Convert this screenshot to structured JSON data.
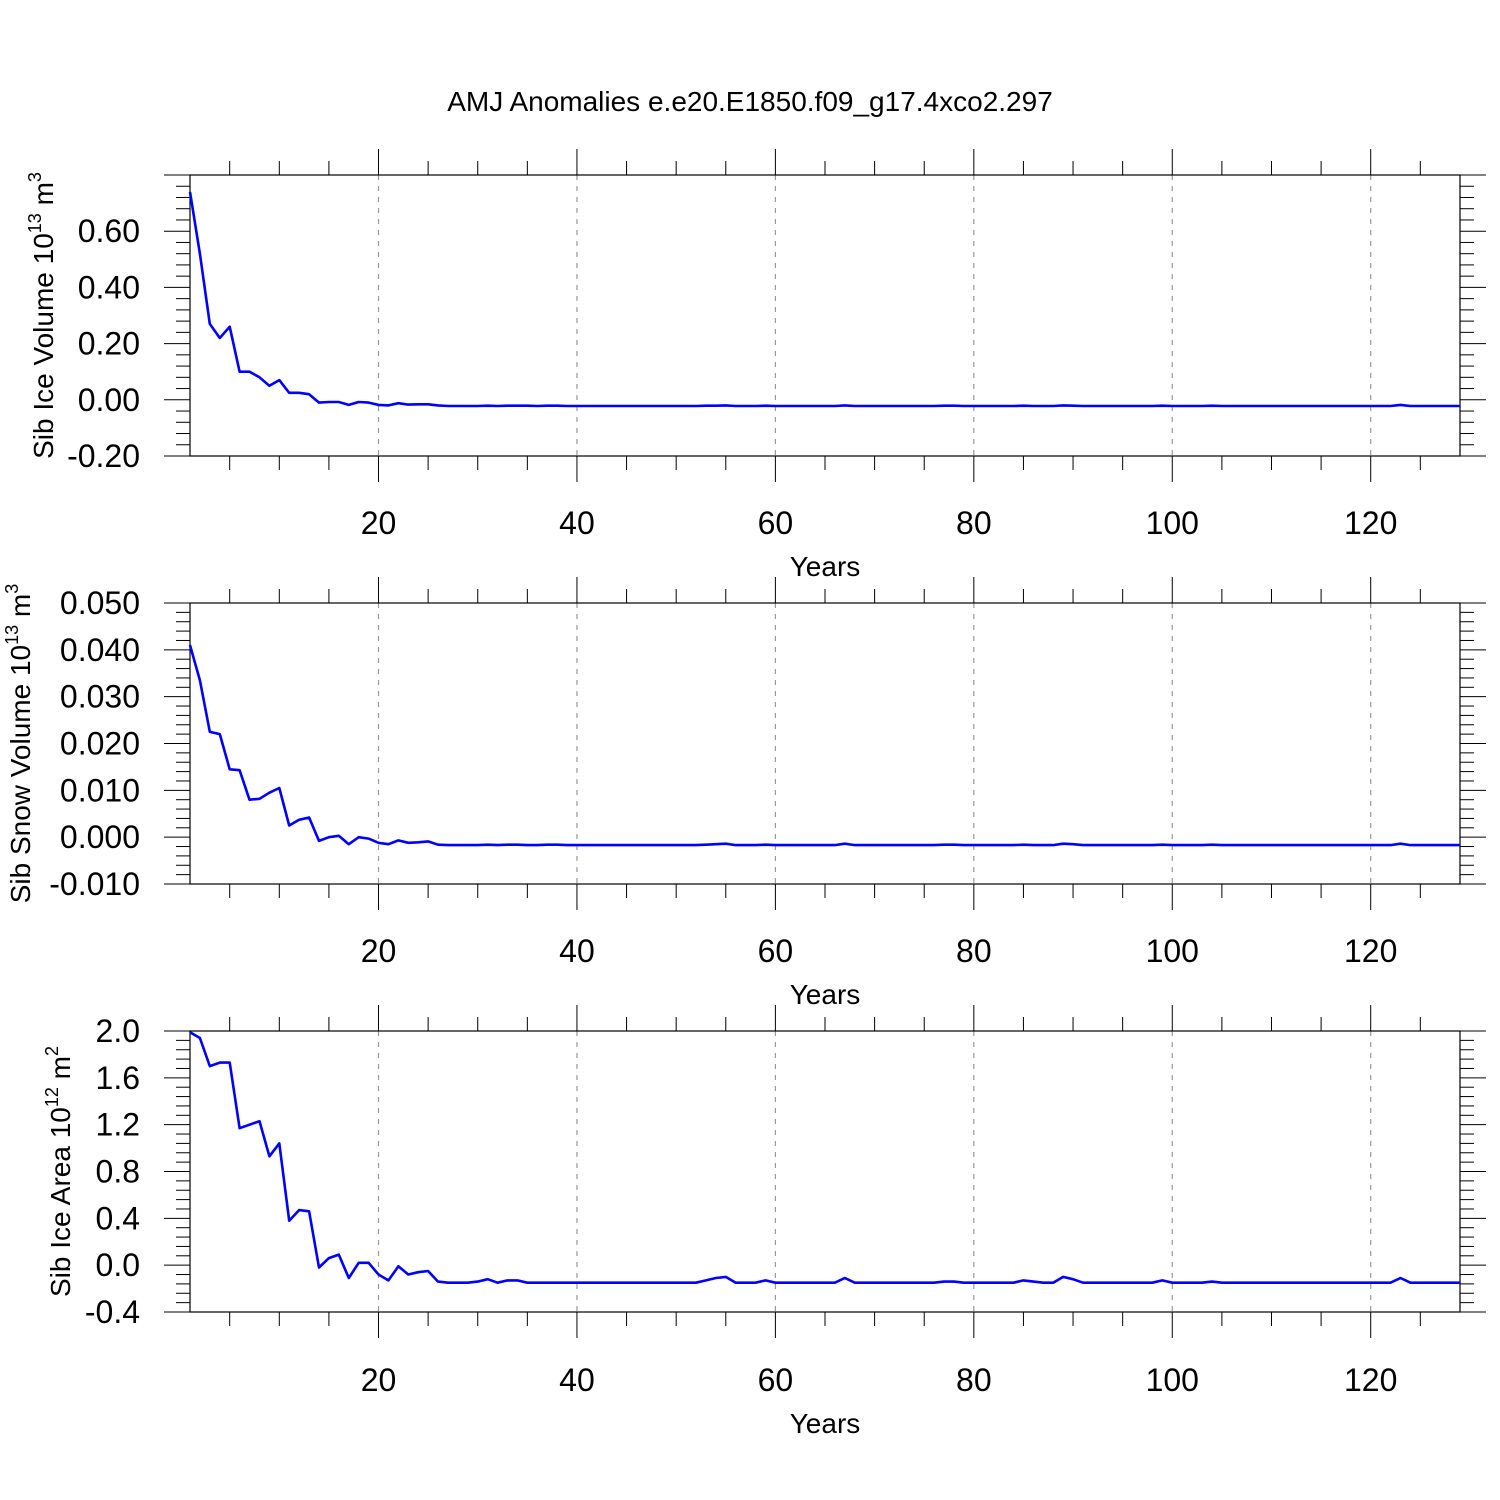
{
  "title": "AMJ Anomalies e.e20.E1850.f09_g17.4xco2.297",
  "colors": {
    "line": "#0000ff",
    "grid": "#999999",
    "axis": "#000000"
  },
  "chart_data": [
    {
      "type": "line",
      "ylabel": {
        "main": "Sib Ice Volume 10",
        "sup": "13",
        "unit": "m",
        "unit_sup": "3"
      },
      "xlabel": "Years",
      "xlim": [
        1,
        129
      ],
      "ylim": [
        -0.2,
        0.8
      ],
      "yticks": [
        -0.2,
        0.0,
        0.2,
        0.4,
        0.6
      ],
      "ytick_labels": [
        "-0.20",
        "0.00",
        "0.20",
        "0.40",
        "0.60"
      ],
      "xticks": [
        20,
        40,
        60,
        80,
        100,
        120
      ],
      "xtick_labels": [
        "20",
        "40",
        "60",
        "80",
        "100",
        "120"
      ],
      "grid": "vertical dashed at major x ticks",
      "series": [
        {
          "x": [
            1,
            2,
            3,
            4,
            5,
            6,
            7,
            8,
            9,
            10,
            11,
            12,
            13,
            14,
            15,
            16,
            17,
            18,
            19,
            20,
            21,
            22,
            23,
            24,
            25,
            26,
            27,
            28,
            29,
            30,
            31,
            32,
            33,
            34,
            35,
            36,
            37,
            38,
            39,
            40,
            41,
            42,
            43,
            44,
            45,
            46,
            47,
            48,
            49,
            50,
            51,
            52,
            53,
            54,
            55,
            56,
            57,
            58,
            59,
            60,
            61,
            62,
            63,
            64,
            65,
            66,
            67,
            68,
            69,
            70,
            71,
            72,
            73,
            74,
            75,
            76,
            77,
            78,
            79,
            80,
            81,
            82,
            83,
            84,
            85,
            86,
            87,
            88,
            89,
            90,
            91,
            92,
            93,
            94,
            95,
            96,
            97,
            98,
            99,
            100,
            101,
            102,
            103,
            104,
            105,
            106,
            107,
            108,
            109,
            110,
            111,
            112,
            113,
            114,
            115,
            116,
            117,
            118,
            119,
            120,
            121,
            122,
            123,
            124,
            125,
            126,
            127,
            128,
            129
          ],
          "y": [
            0.74,
            0.52,
            0.27,
            0.22,
            0.26,
            0.1,
            0.1,
            0.08,
            0.05,
            0.07,
            0.025,
            0.025,
            0.02,
            -0.01,
            -0.008,
            -0.008,
            -0.018,
            -0.008,
            -0.01,
            -0.018,
            -0.02,
            -0.012,
            -0.017,
            -0.016,
            -0.016,
            -0.02,
            -0.022,
            -0.022,
            -0.022,
            -0.022,
            -0.021,
            -0.022,
            -0.021,
            -0.021,
            -0.021,
            -0.022,
            -0.021,
            -0.021,
            -0.022,
            -0.022,
            -0.022,
            -0.022,
            -0.022,
            -0.022,
            -0.022,
            -0.022,
            -0.022,
            -0.022,
            -0.022,
            -0.022,
            -0.022,
            -0.022,
            -0.021,
            -0.021,
            -0.02,
            -0.022,
            -0.022,
            -0.022,
            -0.021,
            -0.022,
            -0.022,
            -0.022,
            -0.022,
            -0.022,
            -0.022,
            -0.022,
            -0.02,
            -0.022,
            -0.022,
            -0.022,
            -0.022,
            -0.022,
            -0.022,
            -0.022,
            -0.022,
            -0.022,
            -0.021,
            -0.021,
            -0.022,
            -0.022,
            -0.022,
            -0.022,
            -0.022,
            -0.022,
            -0.021,
            -0.022,
            -0.022,
            -0.022,
            -0.02,
            -0.021,
            -0.022,
            -0.022,
            -0.022,
            -0.022,
            -0.022,
            -0.022,
            -0.022,
            -0.022,
            -0.021,
            -0.022,
            -0.022,
            -0.022,
            -0.022,
            -0.021,
            -0.022,
            -0.022,
            -0.022,
            -0.022,
            -0.022,
            -0.022,
            -0.022,
            -0.022,
            -0.022,
            -0.022,
            -0.022,
            -0.022,
            -0.022,
            -0.022,
            -0.022,
            -0.022,
            -0.022,
            -0.022,
            -0.018,
            -0.022,
            -0.022,
            -0.022,
            -0.022,
            -0.022,
            -0.022
          ]
        }
      ]
    },
    {
      "type": "line",
      "ylabel": {
        "main": "Sib Snow Volume 10",
        "sup": "13",
        "unit": "m",
        "unit_sup": "3"
      },
      "xlabel": "Years",
      "xlim": [
        1,
        129
      ],
      "ylim": [
        -0.01,
        0.05
      ],
      "yticks": [
        -0.01,
        0.0,
        0.01,
        0.02,
        0.03,
        0.04,
        0.05
      ],
      "ytick_labels": [
        "-0.010",
        "0.000",
        "0.010",
        "0.020",
        "0.030",
        "0.040",
        "0.050"
      ],
      "xticks": [
        20,
        40,
        60,
        80,
        100,
        120
      ],
      "xtick_labels": [
        "20",
        "40",
        "60",
        "80",
        "100",
        "120"
      ],
      "grid": "vertical dashed at major x ticks",
      "series": [
        {
          "x": [
            1,
            2,
            3,
            4,
            5,
            6,
            7,
            8,
            9,
            10,
            11,
            12,
            13,
            14,
            15,
            16,
            17,
            18,
            19,
            20,
            21,
            22,
            23,
            24,
            25,
            26,
            27,
            28,
            29,
            30,
            31,
            32,
            33,
            34,
            35,
            36,
            37,
            38,
            39,
            40,
            41,
            42,
            43,
            44,
            45,
            46,
            47,
            48,
            49,
            50,
            51,
            52,
            53,
            54,
            55,
            56,
            57,
            58,
            59,
            60,
            61,
            62,
            63,
            64,
            65,
            66,
            67,
            68,
            69,
            70,
            71,
            72,
            73,
            74,
            75,
            76,
            77,
            78,
            79,
            80,
            81,
            82,
            83,
            84,
            85,
            86,
            87,
            88,
            89,
            90,
            91,
            92,
            93,
            94,
            95,
            96,
            97,
            98,
            99,
            100,
            101,
            102,
            103,
            104,
            105,
            106,
            107,
            108,
            109,
            110,
            111,
            112,
            113,
            114,
            115,
            116,
            117,
            118,
            119,
            120,
            121,
            122,
            123,
            124,
            125,
            126,
            127,
            128,
            129
          ],
          "y": [
            0.041,
            0.0335,
            0.0225,
            0.022,
            0.0145,
            0.0143,
            0.008,
            0.0082,
            0.0095,
            0.0105,
            0.0025,
            0.0037,
            0.0042,
            -0.0008,
            0.0,
            0.0003,
            -0.0015,
            0.0,
            -0.0003,
            -0.0012,
            -0.0015,
            -0.0007,
            -0.0012,
            -0.0011,
            -0.0009,
            -0.0016,
            -0.0017,
            -0.0017,
            -0.0017,
            -0.0017,
            -0.0016,
            -0.0017,
            -0.0016,
            -0.0016,
            -0.0017,
            -0.0017,
            -0.0016,
            -0.0016,
            -0.0017,
            -0.0017,
            -0.0017,
            -0.0017,
            -0.0017,
            -0.0017,
            -0.0017,
            -0.0017,
            -0.0017,
            -0.0017,
            -0.0017,
            -0.0017,
            -0.0017,
            -0.0017,
            -0.0016,
            -0.0015,
            -0.0014,
            -0.0017,
            -0.0017,
            -0.0017,
            -0.0016,
            -0.0017,
            -0.0017,
            -0.0017,
            -0.0017,
            -0.0017,
            -0.0017,
            -0.0017,
            -0.0014,
            -0.0017,
            -0.0017,
            -0.0017,
            -0.0017,
            -0.0017,
            -0.0017,
            -0.0017,
            -0.0017,
            -0.0017,
            -0.0016,
            -0.0016,
            -0.0017,
            -0.0017,
            -0.0017,
            -0.0017,
            -0.0017,
            -0.0017,
            -0.0016,
            -0.0017,
            -0.0017,
            -0.0017,
            -0.0014,
            -0.0015,
            -0.0017,
            -0.0017,
            -0.0017,
            -0.0017,
            -0.0017,
            -0.0017,
            -0.0017,
            -0.0017,
            -0.0016,
            -0.0017,
            -0.0017,
            -0.0017,
            -0.0017,
            -0.0016,
            -0.0017,
            -0.0017,
            -0.0017,
            -0.0017,
            -0.0017,
            -0.0017,
            -0.0017,
            -0.0017,
            -0.0017,
            -0.0017,
            -0.0017,
            -0.0017,
            -0.0017,
            -0.0017,
            -0.0017,
            -0.0017,
            -0.0017,
            -0.0017,
            -0.0014,
            -0.0017,
            -0.0017,
            -0.0017,
            -0.0017,
            -0.0017,
            -0.0017
          ]
        }
      ]
    },
    {
      "type": "line",
      "ylabel": {
        "main": "Sib Ice Area 10",
        "sup": "12",
        "unit": "m",
        "unit_sup": "2"
      },
      "xlabel": "Years",
      "xlim": [
        1,
        129
      ],
      "ylim": [
        -0.4,
        2.0
      ],
      "yticks": [
        -0.4,
        0.0,
        0.4,
        0.8,
        1.2,
        1.6,
        2.0
      ],
      "ytick_labels": [
        "-0.4",
        "0.0",
        "0.4",
        "0.8",
        "1.2",
        "1.6",
        "2.0"
      ],
      "xticks": [
        20,
        40,
        60,
        80,
        100,
        120
      ],
      "xtick_labels": [
        "20",
        "40",
        "60",
        "80",
        "100",
        "120"
      ],
      "grid": "vertical dashed at major x ticks",
      "series": [
        {
          "x": [
            1,
            2,
            3,
            4,
            5,
            6,
            7,
            8,
            9,
            10,
            11,
            12,
            13,
            14,
            15,
            16,
            17,
            18,
            19,
            20,
            21,
            22,
            23,
            24,
            25,
            26,
            27,
            28,
            29,
            30,
            31,
            32,
            33,
            34,
            35,
            36,
            37,
            38,
            39,
            40,
            41,
            42,
            43,
            44,
            45,
            46,
            47,
            48,
            49,
            50,
            51,
            52,
            53,
            54,
            55,
            56,
            57,
            58,
            59,
            60,
            61,
            62,
            63,
            64,
            65,
            66,
            67,
            68,
            69,
            70,
            71,
            72,
            73,
            74,
            75,
            76,
            77,
            78,
            79,
            80,
            81,
            82,
            83,
            84,
            85,
            86,
            87,
            88,
            89,
            90,
            91,
            92,
            93,
            94,
            95,
            96,
            97,
            98,
            99,
            100,
            101,
            102,
            103,
            104,
            105,
            106,
            107,
            108,
            109,
            110,
            111,
            112,
            113,
            114,
            115,
            116,
            117,
            118,
            119,
            120,
            121,
            122,
            123,
            124,
            125,
            126,
            127,
            128,
            129
          ],
          "y": [
            1.99,
            1.94,
            1.7,
            1.73,
            1.73,
            1.17,
            1.2,
            1.23,
            0.93,
            1.04,
            0.38,
            0.47,
            0.46,
            -0.02,
            0.06,
            0.09,
            -0.11,
            0.02,
            0.02,
            -0.08,
            -0.13,
            -0.01,
            -0.08,
            -0.06,
            -0.05,
            -0.14,
            -0.15,
            -0.15,
            -0.15,
            -0.14,
            -0.12,
            -0.15,
            -0.13,
            -0.13,
            -0.15,
            -0.15,
            -0.15,
            -0.15,
            -0.15,
            -0.15,
            -0.15,
            -0.15,
            -0.15,
            -0.15,
            -0.15,
            -0.15,
            -0.15,
            -0.15,
            -0.15,
            -0.15,
            -0.15,
            -0.15,
            -0.13,
            -0.11,
            -0.1,
            -0.15,
            -0.15,
            -0.15,
            -0.13,
            -0.15,
            -0.15,
            -0.15,
            -0.15,
            -0.15,
            -0.15,
            -0.15,
            -0.11,
            -0.15,
            -0.15,
            -0.15,
            -0.15,
            -0.15,
            -0.15,
            -0.15,
            -0.15,
            -0.15,
            -0.14,
            -0.14,
            -0.15,
            -0.15,
            -0.15,
            -0.15,
            -0.15,
            -0.15,
            -0.13,
            -0.14,
            -0.15,
            -0.15,
            -0.1,
            -0.12,
            -0.15,
            -0.15,
            -0.15,
            -0.15,
            -0.15,
            -0.15,
            -0.15,
            -0.15,
            -0.13,
            -0.15,
            -0.15,
            -0.15,
            -0.15,
            -0.14,
            -0.15,
            -0.15,
            -0.15,
            -0.15,
            -0.15,
            -0.15,
            -0.15,
            -0.15,
            -0.15,
            -0.15,
            -0.15,
            -0.15,
            -0.15,
            -0.15,
            -0.15,
            -0.15,
            -0.15,
            -0.15,
            -0.11,
            -0.15,
            -0.15,
            -0.15,
            -0.15,
            -0.15,
            -0.15
          ]
        }
      ]
    }
  ]
}
